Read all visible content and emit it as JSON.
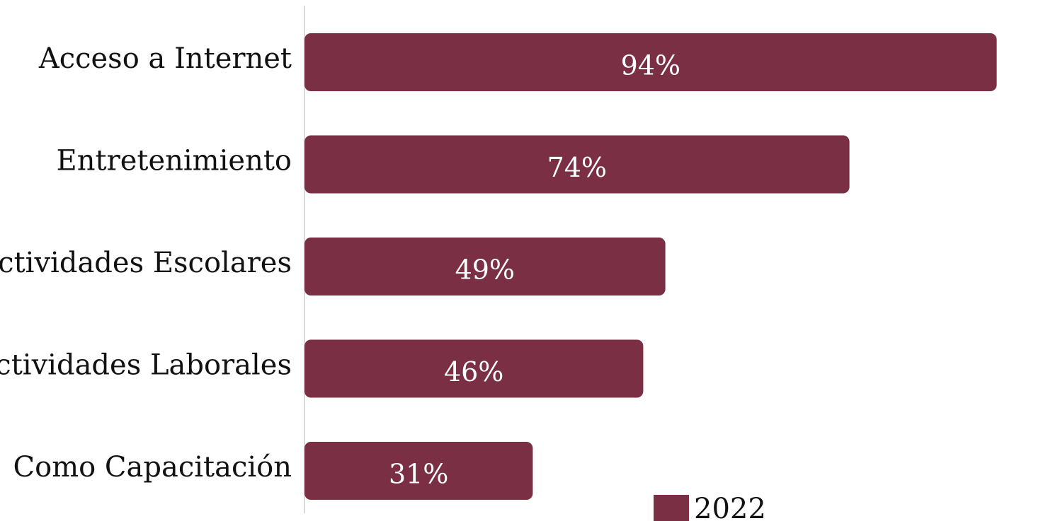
{
  "chart_data": {
    "type": "bar",
    "orientation": "horizontal",
    "categories": [
      "Acceso a Internet",
      "Entretenimiento",
      "Actividades Escolares",
      "Actividades Laborales",
      "Como Capacitación"
    ],
    "series": [
      {
        "name": "2022",
        "values": [
          94,
          74,
          49,
          46,
          31
        ],
        "labels": [
          "94%",
          "74%",
          "49%",
          "46%",
          "31%"
        ]
      }
    ],
    "xlim": [
      0,
      100
    ],
    "grid": false,
    "legend_position": "bottom",
    "bar_color": "#7a2f45",
    "axis_color": "#d9d9d9"
  }
}
